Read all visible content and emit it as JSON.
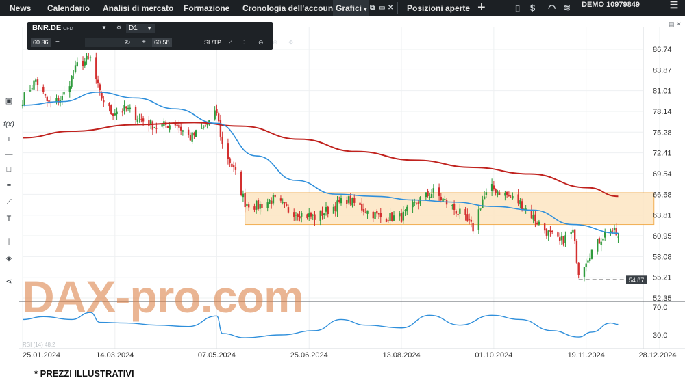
{
  "nav": {
    "items": [
      "News",
      "Calendario",
      "Analisi di mercato",
      "Formazione",
      "Cronologia dell'account",
      "Grafici",
      "Posizioni aperte"
    ],
    "account_mode": "DEMO",
    "account_number": "10979849"
  },
  "instrument": {
    "symbol": "BNR.DE",
    "type_label": "CFD",
    "timeframe": "D1",
    "bid": "60.36",
    "quantity": "2",
    "ask": "60.58",
    "sltp_label": "SL/TP"
  },
  "watermark": "DAX-pro.com",
  "footer_note": "* PREZZI ILLUSTRATIVI",
  "rsi_label": "RSI (14) 48.2",
  "colors": {
    "up_candle": "#2e9b3c",
    "down_candle": "#d32f2f",
    "ma_fast": "#2f8fdb",
    "ma_slow": "#c0221e",
    "zone_fill": "#fde7c6",
    "zone_border": "#f0a640",
    "rsi_line": "#2f8fdb"
  },
  "chart_data": {
    "type": "candlestick",
    "price_ticks": [
      86.74,
      83.87,
      81.01,
      78.14,
      75.28,
      72.41,
      69.54,
      66.68,
      63.81,
      60.95,
      58.08,
      55.21,
      52.35
    ],
    "ylim": [
      52.35,
      86.74
    ],
    "date_ticks": [
      "25.01.2024",
      "14.03.2024",
      "07.05.2024",
      "25.06.2024",
      "13.08.2024",
      "01.10.2024",
      "19.11.2024",
      "28.12.2024"
    ],
    "current_price_label": "54.87",
    "current_price": 54.87,
    "zone": {
      "top": 66.9,
      "bottom": 62.5,
      "start": "2024-05-22",
      "end": "2024-12-25"
    },
    "rsi_ticks": [
      70.0,
      30.0
    ],
    "rsi_ylim": [
      24,
      76
    ],
    "anchors": [
      {
        "d": "2024-01-25",
        "p": 79.8
      },
      {
        "d": "2024-02-01",
        "p": 82.5
      },
      {
        "d": "2024-02-08",
        "p": 79.0
      },
      {
        "d": "2024-02-15",
        "p": 80.0
      },
      {
        "d": "2024-02-23",
        "p": 84.5
      },
      {
        "d": "2024-03-01",
        "p": 85.5
      },
      {
        "d": "2024-03-06",
        "p": 80.5
      },
      {
        "d": "2024-03-12",
        "p": 78.0
      },
      {
        "d": "2024-03-20",
        "p": 78.5
      },
      {
        "d": "2024-03-28",
        "p": 77.0
      },
      {
        "d": "2024-04-05",
        "p": 76.0
      },
      {
        "d": "2024-04-15",
        "p": 76.5
      },
      {
        "d": "2024-04-23",
        "p": 74.5
      },
      {
        "d": "2024-05-01",
        "p": 76.0
      },
      {
        "d": "2024-05-07",
        "p": 78.0
      },
      {
        "d": "2024-05-10",
        "p": 73.5
      },
      {
        "d": "2024-05-17",
        "p": 69.5
      },
      {
        "d": "2024-05-22",
        "p": 65.5
      },
      {
        "d": "2024-05-29",
        "p": 65.0
      },
      {
        "d": "2024-06-06",
        "p": 66.0
      },
      {
        "d": "2024-06-14",
        "p": 64.5
      },
      {
        "d": "2024-06-21",
        "p": 64.0
      },
      {
        "d": "2024-06-28",
        "p": 63.5
      },
      {
        "d": "2024-07-05",
        "p": 64.5
      },
      {
        "d": "2024-07-15",
        "p": 66.0
      },
      {
        "d": "2024-07-25",
        "p": 64.5
      },
      {
        "d": "2024-08-02",
        "p": 63.5
      },
      {
        "d": "2024-08-13",
        "p": 63.5
      },
      {
        "d": "2024-08-23",
        "p": 66.0
      },
      {
        "d": "2024-08-30",
        "p": 67.0
      },
      {
        "d": "2024-09-06",
        "p": 65.5
      },
      {
        "d": "2024-09-13",
        "p": 64.0
      },
      {
        "d": "2024-09-20",
        "p": 62.0
      },
      {
        "d": "2024-09-25",
        "p": 66.0
      },
      {
        "d": "2024-09-30",
        "p": 67.5
      },
      {
        "d": "2024-10-08",
        "p": 66.5
      },
      {
        "d": "2024-10-15",
        "p": 65.5
      },
      {
        "d": "2024-10-22",
        "p": 63.5
      },
      {
        "d": "2024-10-29",
        "p": 61.5
      },
      {
        "d": "2024-11-05",
        "p": 60.0
      },
      {
        "d": "2024-11-12",
        "p": 61.5
      },
      {
        "d": "2024-11-15",
        "p": 56.0
      },
      {
        "d": "2024-11-21",
        "p": 58.5
      },
      {
        "d": "2024-11-28",
        "p": 61.0
      },
      {
        "d": "2024-12-02",
        "p": 62.0
      },
      {
        "d": "2024-12-06",
        "p": 60.8
      }
    ],
    "ma_fast": [
      {
        "d": "2024-01-25",
        "p": 79.0
      },
      {
        "d": "2024-02-15",
        "p": 79.5
      },
      {
        "d": "2024-03-05",
        "p": 80.8
      },
      {
        "d": "2024-03-25",
        "p": 80.0
      },
      {
        "d": "2024-04-15",
        "p": 78.5
      },
      {
        "d": "2024-05-07",
        "p": 76.5
      },
      {
        "d": "2024-05-28",
        "p": 72.0
      },
      {
        "d": "2024-06-18",
        "p": 68.6
      },
      {
        "d": "2024-07-09",
        "p": 66.7
      },
      {
        "d": "2024-07-30",
        "p": 66.4
      },
      {
        "d": "2024-08-20",
        "p": 65.9
      },
      {
        "d": "2024-09-10",
        "p": 65.6
      },
      {
        "d": "2024-10-01",
        "p": 65.0
      },
      {
        "d": "2024-10-22",
        "p": 64.5
      },
      {
        "d": "2024-11-12",
        "p": 62.5
      },
      {
        "d": "2024-12-06",
        "p": 61.3
      }
    ],
    "ma_slow": [
      {
        "d": "2024-01-25",
        "p": 74.5
      },
      {
        "d": "2024-02-20",
        "p": 75.4
      },
      {
        "d": "2024-03-25",
        "p": 76.3
      },
      {
        "d": "2024-04-25",
        "p": 76.6
      },
      {
        "d": "2024-05-20",
        "p": 76.1
      },
      {
        "d": "2024-06-20",
        "p": 74.3
      },
      {
        "d": "2024-07-20",
        "p": 72.6
      },
      {
        "d": "2024-08-20",
        "p": 71.4
      },
      {
        "d": "2024-09-20",
        "p": 70.4
      },
      {
        "d": "2024-10-20",
        "p": 69.5
      },
      {
        "d": "2024-11-20",
        "p": 67.6
      },
      {
        "d": "2024-12-06",
        "p": 66.4
      }
    ],
    "rsi": [
      {
        "d": "2024-01-25",
        "v": 52
      },
      {
        "d": "2024-02-05",
        "v": 56
      },
      {
        "d": "2024-02-20",
        "v": 52
      },
      {
        "d": "2024-03-01",
        "v": 62
      },
      {
        "d": "2024-03-06",
        "v": 48
      },
      {
        "d": "2024-03-20",
        "v": 47
      },
      {
        "d": "2024-04-05",
        "v": 44
      },
      {
        "d": "2024-04-22",
        "v": 42
      },
      {
        "d": "2024-05-07",
        "v": 57
      },
      {
        "d": "2024-05-10",
        "v": 32
      },
      {
        "d": "2024-05-22",
        "v": 26
      },
      {
        "d": "2024-06-10",
        "v": 30
      },
      {
        "d": "2024-06-28",
        "v": 36
      },
      {
        "d": "2024-07-12",
        "v": 52
      },
      {
        "d": "2024-07-25",
        "v": 44
      },
      {
        "d": "2024-08-13",
        "v": 40
      },
      {
        "d": "2024-08-28",
        "v": 58
      },
      {
        "d": "2024-09-13",
        "v": 44
      },
      {
        "d": "2024-09-30",
        "v": 58
      },
      {
        "d": "2024-10-15",
        "v": 52
      },
      {
        "d": "2024-11-01",
        "v": 36
      },
      {
        "d": "2024-11-15",
        "v": 27
      },
      {
        "d": "2024-11-22",
        "v": 34
      },
      {
        "d": "2024-12-02",
        "v": 47
      },
      {
        "d": "2024-12-06",
        "v": 45
      }
    ]
  }
}
